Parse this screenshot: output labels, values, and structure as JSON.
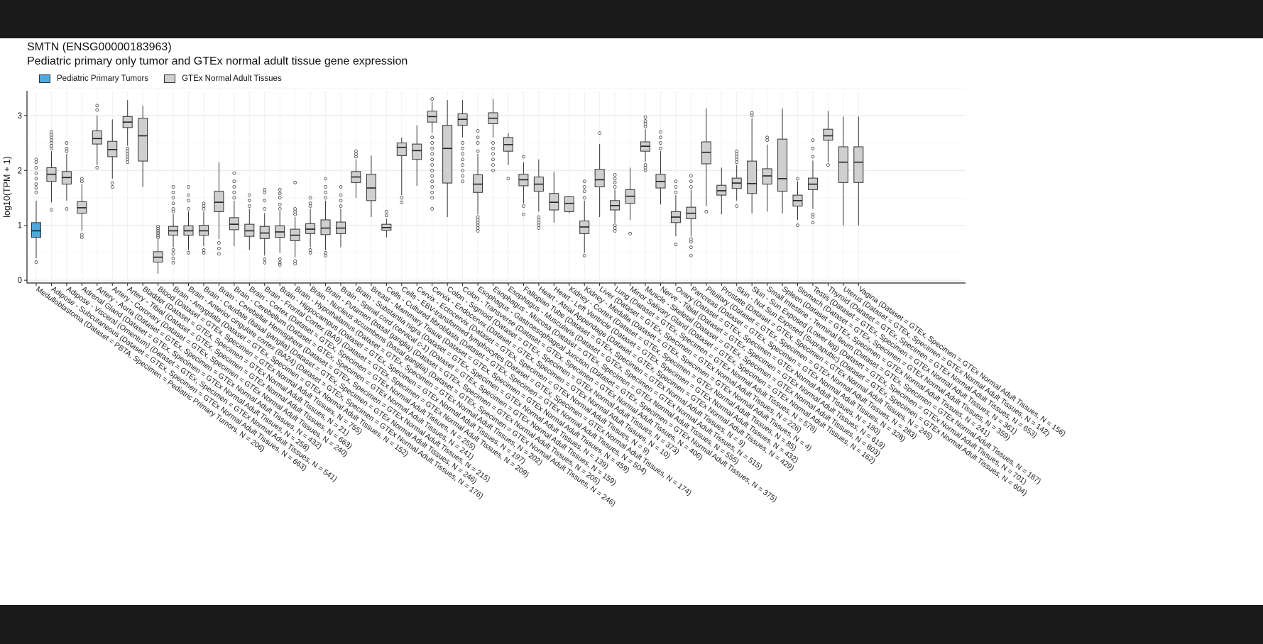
{
  "title": "SMTN (ENSG00000183963)",
  "subtitle": "Pediatric primary only tumor and GTEx normal adult tissue gene expression",
  "legend": [
    {
      "label": "Pediatric Primary Tumors",
      "color": "#4ea9dd"
    },
    {
      "label": "GTEx Normal Adult Tissues",
      "color": "#cfcfcf"
    }
  ],
  "chart_data": {
    "type": "box",
    "ylabel": "log10(TPM + 1)",
    "ylim": [
      -0.05,
      3.45
    ],
    "yticks": [
      0,
      1,
      2,
      3
    ],
    "grid": true,
    "legend_position": "top-left",
    "categories": [
      {
        "label": "Medulloblastoma (Dataset = PBTA, Specimen = Pediatric Primary Tumors, N = 206)",
        "group": 0,
        "q1": 0.78,
        "median": 0.9,
        "q3": 1.05,
        "wlo": 0.4,
        "whi": 1.45,
        "outliers": [
          0.33,
          1.6,
          1.68,
          1.75,
          1.85,
          1.95,
          2.05,
          2.15,
          2.2
        ]
      },
      {
        "label": "Adipose - Subcutaneous (Dataset = GTEx, Specimen = GTEx Normal Adult Tissues, N = 663)",
        "group": 1,
        "q1": 1.8,
        "median": 1.93,
        "q3": 2.05,
        "wlo": 1.42,
        "whi": 2.35,
        "outliers": [
          1.28,
          2.4,
          2.45,
          2.5,
          2.55,
          2.6,
          2.65,
          2.7
        ]
      },
      {
        "label": "Adipose - Visceral (Omentum) (Dataset = GTEx, Specimen = GTEx Normal Adult Tissues, N = 541)",
        "group": 1,
        "q1": 1.75,
        "median": 1.87,
        "q3": 1.98,
        "wlo": 1.45,
        "whi": 2.3,
        "outliers": [
          1.3,
          2.35,
          2.4,
          2.5
        ]
      },
      {
        "label": "Adrenal Gland (Dataset = GTEx, Specimen = GTEx Normal Adult Tissues, N = 258)",
        "group": 1,
        "q1": 1.22,
        "median": 1.32,
        "q3": 1.43,
        "wlo": 0.9,
        "whi": 1.75,
        "outliers": [
          0.78,
          0.83,
          1.8,
          1.85
        ]
      },
      {
        "label": "Artery - Aorta (Dataset = GTEx, Specimen = GTEx Normal Adult Tissues, N = 432)",
        "group": 1,
        "q1": 2.48,
        "median": 2.58,
        "q3": 2.72,
        "wlo": 2.1,
        "whi": 3.0,
        "outliers": [
          2.05,
          3.1,
          3.18
        ]
      },
      {
        "label": "Artery - Coronary (Dataset = GTEx, Specimen = GTEx Normal Adult Tissues, N = 240)",
        "group": 1,
        "q1": 2.25,
        "median": 2.38,
        "q3": 2.53,
        "wlo": 1.85,
        "whi": 2.93,
        "outliers": [
          1.7,
          1.77
        ]
      },
      {
        "label": "Artery - Tibial (Dataset = GTEx, Specimen = GTEx Normal Adult Tissues, N = 663)",
        "group": 1,
        "q1": 2.78,
        "median": 2.88,
        "q3": 2.98,
        "wlo": 2.45,
        "whi": 3.28,
        "outliers": [
          2.15,
          2.2,
          2.25,
          2.3,
          2.35,
          2.4
        ]
      },
      {
        "label": "Bladder (Dataset = GTEx, Specimen = GTEx Normal Adult Tissues, N = 21)",
        "group": 1,
        "q1": 2.17,
        "median": 2.63,
        "q3": 2.95,
        "wlo": 1.7,
        "whi": 3.18,
        "outliers": []
      },
      {
        "label": "Blood (Dataset = GTEx, Specimen = GTEx Normal Adult Tissues, N = 755)",
        "group": 1,
        "q1": 0.33,
        "median": 0.42,
        "q3": 0.52,
        "wlo": 0.12,
        "whi": 0.75,
        "outliers": [
          0.78,
          0.82,
          0.86,
          0.9,
          0.94,
          0.98
        ]
      },
      {
        "label": "Brain - Amygdala (Dataset = GTEx, Specimen = GTEx Normal Adult Tissues, N = 152)",
        "group": 1,
        "q1": 0.82,
        "median": 0.9,
        "q3": 0.98,
        "wlo": 0.6,
        "whi": 1.2,
        "outliers": [
          0.32,
          0.4,
          0.48,
          0.55,
          1.25,
          1.3,
          1.4,
          1.5,
          1.6,
          1.7
        ]
      },
      {
        "label": "Brain - Anterior cingulate cortex (BA24) (Dataset = GTEx, Specimen = GTEx Normal Adult Tissues, N = 176)",
        "group": 1,
        "q1": 0.82,
        "median": 0.9,
        "q3": 0.99,
        "wlo": 0.55,
        "whi": 1.25,
        "outliers": [
          0.5,
          1.3,
          1.45,
          1.55,
          1.7
        ]
      },
      {
        "label": "Brain - Caudate (basal ganglia) (Dataset = GTEx, Specimen = GTEx Normal Adult Tissues, N = 246)",
        "group": 1,
        "q1": 0.82,
        "median": 0.9,
        "q3": 1.0,
        "wlo": 0.62,
        "whi": 1.25,
        "outliers": [
          0.5,
          0.55,
          1.3,
          1.35,
          1.4
        ]
      },
      {
        "label": "Brain - Cerebellar Hemisphere (Dataset = GTEx, Specimen = GTEx Normal Adult Tissues, N = 215)",
        "group": 1,
        "q1": 1.25,
        "median": 1.42,
        "q3": 1.62,
        "wlo": 0.75,
        "whi": 2.15,
        "outliers": [
          0.48,
          0.58,
          0.68
        ]
      },
      {
        "label": "Brain - Cerebellum (Dataset = GTEx, Specimen = GTEx Normal Adult Tissues, N = 241)",
        "group": 1,
        "q1": 0.92,
        "median": 1.02,
        "q3": 1.14,
        "wlo": 0.62,
        "whi": 1.45,
        "outliers": [
          1.5,
          1.6,
          1.7,
          1.8,
          1.95
        ]
      },
      {
        "label": "Brain - Cortex (Dataset = GTEx, Specimen = GTEx Normal Adult Tissues, N = 255)",
        "group": 1,
        "q1": 0.8,
        "median": 0.9,
        "q3": 1.02,
        "wlo": 0.55,
        "whi": 1.3,
        "outliers": [
          1.35,
          1.45,
          1.55
        ]
      },
      {
        "label": "Brain - Frontal Cortex (BA9) (Dataset = GTEx, Specimen = GTEx Normal Adult Tissues, N = 209)",
        "group": 1,
        "q1": 0.76,
        "median": 0.86,
        "q3": 0.98,
        "wlo": 0.45,
        "whi": 1.22,
        "outliers": [
          0.32,
          0.38,
          1.3,
          1.45,
          1.6,
          1.65
        ]
      },
      {
        "label": "Brain - Hippocampus (Dataset = GTEx, Specimen = GTEx Normal Adult Tissues, N = 197)",
        "group": 1,
        "q1": 0.78,
        "median": 0.88,
        "q3": 0.99,
        "wlo": 0.5,
        "whi": 1.25,
        "outliers": [
          0.28,
          0.32,
          0.38,
          1.3,
          1.38,
          1.5,
          1.58,
          1.65
        ]
      },
      {
        "label": "Brain - Hypothalamus (Dataset = GTEx, Specimen = GTEx Normal Adult Tissues, N = 202)",
        "group": 1,
        "q1": 0.72,
        "median": 0.82,
        "q3": 0.93,
        "wlo": 0.42,
        "whi": 1.15,
        "outliers": [
          0.3,
          0.35,
          1.2,
          1.25,
          1.3,
          1.78
        ]
      },
      {
        "label": "Brain - Nucleus accumbens (basal ganglia) (Dataset = GTEx, Specimen = GTEx Normal Adult Tissues, N = 246)",
        "group": 1,
        "q1": 0.85,
        "median": 0.93,
        "q3": 1.03,
        "wlo": 0.6,
        "whi": 1.3,
        "outliers": [
          0.5,
          0.55,
          1.35,
          1.4,
          1.5
        ]
      },
      {
        "label": "Brain - Putamen (basal ganglia) (Dataset = GTEx, Specimen = GTEx Normal Adult Tissues, N = 205)",
        "group": 1,
        "q1": 0.83,
        "median": 0.95,
        "q3": 1.1,
        "wlo": 0.55,
        "whi": 1.45,
        "outliers": [
          0.45,
          0.5,
          1.5,
          1.6,
          1.7,
          1.85
        ]
      },
      {
        "label": "Brain - Spinal cord (cervical c-1) (Dataset = GTEx, Specimen = GTEx Normal Adult Tissues, N = 159)",
        "group": 1,
        "q1": 0.85,
        "median": 0.95,
        "q3": 1.06,
        "wlo": 0.6,
        "whi": 1.3,
        "outliers": [
          1.35,
          1.45,
          1.55,
          1.7
        ]
      },
      {
        "label": "Brain - Substantia nigra (Dataset = GTEx, Specimen = GTEx Normal Adult Tissues, N = 139)",
        "group": 1,
        "q1": 1.78,
        "median": 1.88,
        "q3": 1.98,
        "wlo": 1.5,
        "whi": 2.2,
        "outliers": [
          2.25,
          2.3,
          2.35
        ]
      },
      {
        "label": "Breast - Mammary Tissue (Dataset = GTEx, Specimen = GTEx Normal Adult Tissues, N = 459)",
        "group": 1,
        "q1": 1.45,
        "median": 1.68,
        "q3": 1.93,
        "wlo": 1.15,
        "whi": 2.27,
        "outliers": []
      },
      {
        "label": "Cells - Cultured fibroblasts (Dataset = GTEx, Specimen = GTEx Normal Adult Tissues, N = 504)",
        "group": 1,
        "q1": 0.91,
        "median": 0.96,
        "q3": 1.02,
        "wlo": 0.78,
        "whi": 1.12,
        "outliers": [
          1.18,
          1.25
        ]
      },
      {
        "label": "Cells - EBV-transformed lymphocytes (Dataset = GTEx, Specimen = GTEx Normal Adult Tissues, N = 174)",
        "group": 1,
        "q1": 2.27,
        "median": 2.42,
        "q3": 2.5,
        "wlo": 1.55,
        "whi": 2.6,
        "outliers": [
          1.42,
          1.5
        ]
      },
      {
        "label": "Cervix - Ectocervix (Dataset = GTEx, Specimen = GTEx Normal Adult Tissues, N = 9)",
        "group": 1,
        "q1": 2.2,
        "median": 2.36,
        "q3": 2.48,
        "wlo": 1.72,
        "whi": 2.82,
        "outliers": []
      },
      {
        "label": "Cervix - Endocervix (Dataset = GTEx, Specimen = GTEx Normal Adult Tissues, N = 10)",
        "group": 1,
        "q1": 2.88,
        "median": 2.98,
        "q3": 3.08,
        "wlo": 2.68,
        "whi": 3.25,
        "outliers": [
          1.3,
          1.5,
          1.6,
          1.7,
          1.8,
          1.9,
          2.0,
          2.1,
          2.2,
          2.3,
          2.4,
          2.5,
          2.6,
          3.3
        ]
      },
      {
        "label": "Colon - Sigmoid (Dataset = GTEx, Specimen = GTEx Normal Adult Tissues, N = 373)",
        "group": 1,
        "q1": 1.77,
        "median": 2.4,
        "q3": 2.82,
        "wlo": 1.15,
        "whi": 3.28,
        "outliers": []
      },
      {
        "label": "Colon - Transverse (Dataset = GTEx, Specimen = GTEx Normal Adult Tissues, N = 406)",
        "group": 1,
        "q1": 2.82,
        "median": 2.93,
        "q3": 3.03,
        "wlo": 2.6,
        "whi": 3.28,
        "outliers": [
          1.8,
          1.9,
          2.0,
          2.1,
          2.2,
          2.3,
          2.4,
          2.5
        ]
      },
      {
        "label": "Esophagus - Gastroesophageal Junction (Dataset = GTEx, Specimen = GTEx Normal Adult Tissues, N = 375)",
        "group": 1,
        "q1": 1.6,
        "median": 1.75,
        "q3": 1.92,
        "wlo": 1.2,
        "whi": 2.3,
        "outliers": [
          0.9,
          0.95,
          1.0,
          1.05,
          1.1,
          1.15,
          2.35,
          2.5,
          2.6,
          2.72
        ]
      },
      {
        "label": "Esophagus - Mucosa (Dataset = GTEx, Specimen = GTEx Normal Adult Tissues, N = 555)",
        "group": 1,
        "q1": 2.85,
        "median": 2.95,
        "q3": 3.05,
        "wlo": 2.6,
        "whi": 3.3,
        "outliers": [
          2.0,
          2.1,
          2.2,
          2.3,
          2.4,
          2.5
        ]
      },
      {
        "label": "Esophagus - Muscularis (Dataset = GTEx, Specimen = GTEx Normal Adult Tissues, N = 515)",
        "group": 1,
        "q1": 2.35,
        "median": 2.47,
        "q3": 2.6,
        "wlo": 2.1,
        "whi": 2.68,
        "outliers": [
          1.85
        ]
      },
      {
        "label": "Fallopian Tube (Dataset = GTEx, Specimen = GTEx Normal Adult Tissues, N = 9)",
        "group": 1,
        "q1": 1.72,
        "median": 1.83,
        "q3": 1.93,
        "wlo": 1.4,
        "whi": 2.15,
        "outliers": [
          1.2,
          1.35,
          2.25
        ]
      },
      {
        "label": "Heart - Atrial Appendage (Dataset = GTEx, Specimen = GTEx Normal Adult Tissues, N = 429)",
        "group": 1,
        "q1": 1.62,
        "median": 1.75,
        "q3": 1.88,
        "wlo": 1.25,
        "whi": 2.2,
        "outliers": [
          0.95,
          1.0,
          1.05,
          1.1,
          1.15
        ]
      },
      {
        "label": "Heart - Left Ventricle (Dataset = GTEx, Specimen = GTEx Normal Adult Tissues, N = 432)",
        "group": 1,
        "q1": 1.28,
        "median": 1.42,
        "q3": 1.58,
        "wlo": 1.05,
        "whi": 1.97,
        "outliers": []
      },
      {
        "label": "Kidney - Cortex (Dataset = GTEx, Specimen = GTEx Normal Adult Tissues, N = 85)",
        "group": 1,
        "q1": 1.25,
        "median": 1.4,
        "q3": 1.52,
        "wlo": 1.22,
        "whi": 1.53,
        "outliers": []
      },
      {
        "label": "Kidney - Medulla (Dataset = GTEx, Specimen = GTEx Normal Adult Tissues, N = 4)",
        "group": 1,
        "q1": 0.85,
        "median": 0.97,
        "q3": 1.08,
        "wlo": 0.5,
        "whi": 1.45,
        "outliers": [
          0.45,
          1.5,
          1.62,
          1.7,
          1.8
        ]
      },
      {
        "label": "Liver (Dataset = GTEx, Specimen = GTEx Normal Adult Tissues, N = 226)",
        "group": 1,
        "q1": 1.7,
        "median": 1.83,
        "q3": 2.02,
        "wlo": 1.15,
        "whi": 2.48,
        "outliers": [
          2.68
        ]
      },
      {
        "label": "Lung (Dataset = GTEx, Specimen = GTEx Normal Adult Tissues, N = 578)",
        "group": 1,
        "q1": 1.28,
        "median": 1.36,
        "q3": 1.45,
        "wlo": 1.05,
        "whi": 1.65,
        "outliers": [
          0.9,
          0.95,
          1.0,
          1.7,
          1.78,
          1.85,
          1.92
        ]
      },
      {
        "label": "Minor Salivary Gland (Dataset = GTEx, Specimen = GTEx Normal Adult Tissues, N = 162)",
        "group": 1,
        "q1": 1.4,
        "median": 1.53,
        "q3": 1.65,
        "wlo": 1.1,
        "whi": 2.05,
        "outliers": [
          0.85
        ]
      },
      {
        "label": "Muscle - Skeletal (Dataset = GTEx, Specimen = GTEx Normal Adult Tissues, N = 803)",
        "group": 1,
        "q1": 2.35,
        "median": 2.44,
        "q3": 2.52,
        "wlo": 2.15,
        "whi": 2.75,
        "outliers": [
          2.0,
          2.05,
          2.1,
          2.8,
          2.85,
          2.9,
          2.97
        ]
      },
      {
        "label": "Nerve - Tibial (Dataset = GTEx, Specimen = GTEx Normal Adult Tissues, N = 619)",
        "group": 1,
        "q1": 1.68,
        "median": 1.8,
        "q3": 1.93,
        "wlo": 1.38,
        "whi": 2.35,
        "outliers": [
          2.4,
          2.5,
          2.6,
          2.7
        ]
      },
      {
        "label": "Ovary (Dataset = GTEx, Specimen = GTEx Normal Adult Tissues, N = 180)",
        "group": 1,
        "q1": 1.05,
        "median": 1.15,
        "q3": 1.25,
        "wlo": 0.8,
        "whi": 1.55,
        "outliers": [
          0.65,
          1.6,
          1.7,
          1.8
        ]
      },
      {
        "label": "Pancreas (Dataset = GTEx, Specimen = GTEx Normal Adult Tissues, N = 328)",
        "group": 1,
        "q1": 1.12,
        "median": 1.22,
        "q3": 1.33,
        "wlo": 0.8,
        "whi": 1.65,
        "outliers": [
          0.45,
          0.6,
          0.7,
          0.75,
          1.7,
          1.8,
          1.9
        ]
      },
      {
        "label": "Pituitary (Dataset = GTEx, Specimen = GTEx Normal Adult Tissues, N = 283)",
        "group": 1,
        "q1": 2.12,
        "median": 2.33,
        "q3": 2.52,
        "wlo": 1.35,
        "whi": 3.13,
        "outliers": [
          1.25
        ]
      },
      {
        "label": "Prostate (Dataset = GTEx, Specimen = GTEx Normal Adult Tissues, N = 245)",
        "group": 1,
        "q1": 1.55,
        "median": 1.63,
        "q3": 1.73,
        "wlo": 1.2,
        "whi": 2.05,
        "outliers": []
      },
      {
        "label": "Skin - Not Sun Exposed (Suprapubic) (Dataset = GTEx, Specimen = GTEx Normal Adult Tissues, N = 604)",
        "group": 1,
        "q1": 1.67,
        "median": 1.77,
        "q3": 1.86,
        "wlo": 1.45,
        "whi": 2.1,
        "outliers": [
          1.35,
          2.15,
          2.2,
          2.25,
          2.3,
          2.35
        ]
      },
      {
        "label": "Skin - Sun Exposed (Lower leg) (Dataset = GTEx, Specimen = GTEx Normal Adult Tissues, N = 701)",
        "group": 1,
        "q1": 1.58,
        "median": 1.76,
        "q3": 2.17,
        "wlo": 1.22,
        "whi": 2.95,
        "outliers": [
          3.0,
          3.05
        ]
      },
      {
        "label": "Small Intestine - Terminal Ileum (Dataset = GTEx, Specimen = GTEx Normal Adult Tissues, N = 187)",
        "group": 1,
        "q1": 1.75,
        "median": 1.9,
        "q3": 2.03,
        "wlo": 1.25,
        "whi": 2.47,
        "outliers": [
          2.55,
          2.6
        ]
      },
      {
        "label": "Spleen (Dataset = GTEx, Specimen = GTEx Normal Adult Tissues, N = 241)",
        "group": 1,
        "q1": 1.62,
        "median": 1.85,
        "q3": 2.57,
        "wlo": 1.22,
        "whi": 3.13,
        "outliers": []
      },
      {
        "label": "Stomach (Dataset = GTEx, Specimen = GTEx Normal Adult Tissues, N = 359)",
        "group": 1,
        "q1": 1.35,
        "median": 1.45,
        "q3": 1.55,
        "wlo": 1.1,
        "whi": 1.8,
        "outliers": [
          1.0,
          1.85
        ]
      },
      {
        "label": "Testis (Dataset = GTEx, Specimen = GTEx Normal Adult Tissues, N = 361)",
        "group": 1,
        "q1": 1.65,
        "median": 1.75,
        "q3": 1.86,
        "wlo": 1.3,
        "whi": 2.18,
        "outliers": [
          1.05,
          1.15,
          1.2,
          2.25,
          2.4,
          2.55
        ]
      },
      {
        "label": "Thyroid (Dataset = GTEx, Specimen = GTEx Normal Adult Tissues, N = 653)",
        "group": 1,
        "q1": 2.55,
        "median": 2.63,
        "q3": 2.75,
        "wlo": 2.15,
        "whi": 3.08,
        "outliers": [
          2.1
        ]
      },
      {
        "label": "Uterus (Dataset = GTEx, Specimen = GTEx Normal Adult Tissues, N = 142)",
        "group": 1,
        "q1": 1.78,
        "median": 2.15,
        "q3": 2.43,
        "wlo": 1.0,
        "whi": 2.98,
        "outliers": []
      },
      {
        "label": "Vagina (Dataset = GTEx, Specimen = GTEx Normal Adult Tissues, N = 156)",
        "group": 1,
        "q1": 1.78,
        "median": 2.15,
        "q3": 2.43,
        "wlo": 1.0,
        "whi": 2.98,
        "outliers": []
      }
    ]
  }
}
